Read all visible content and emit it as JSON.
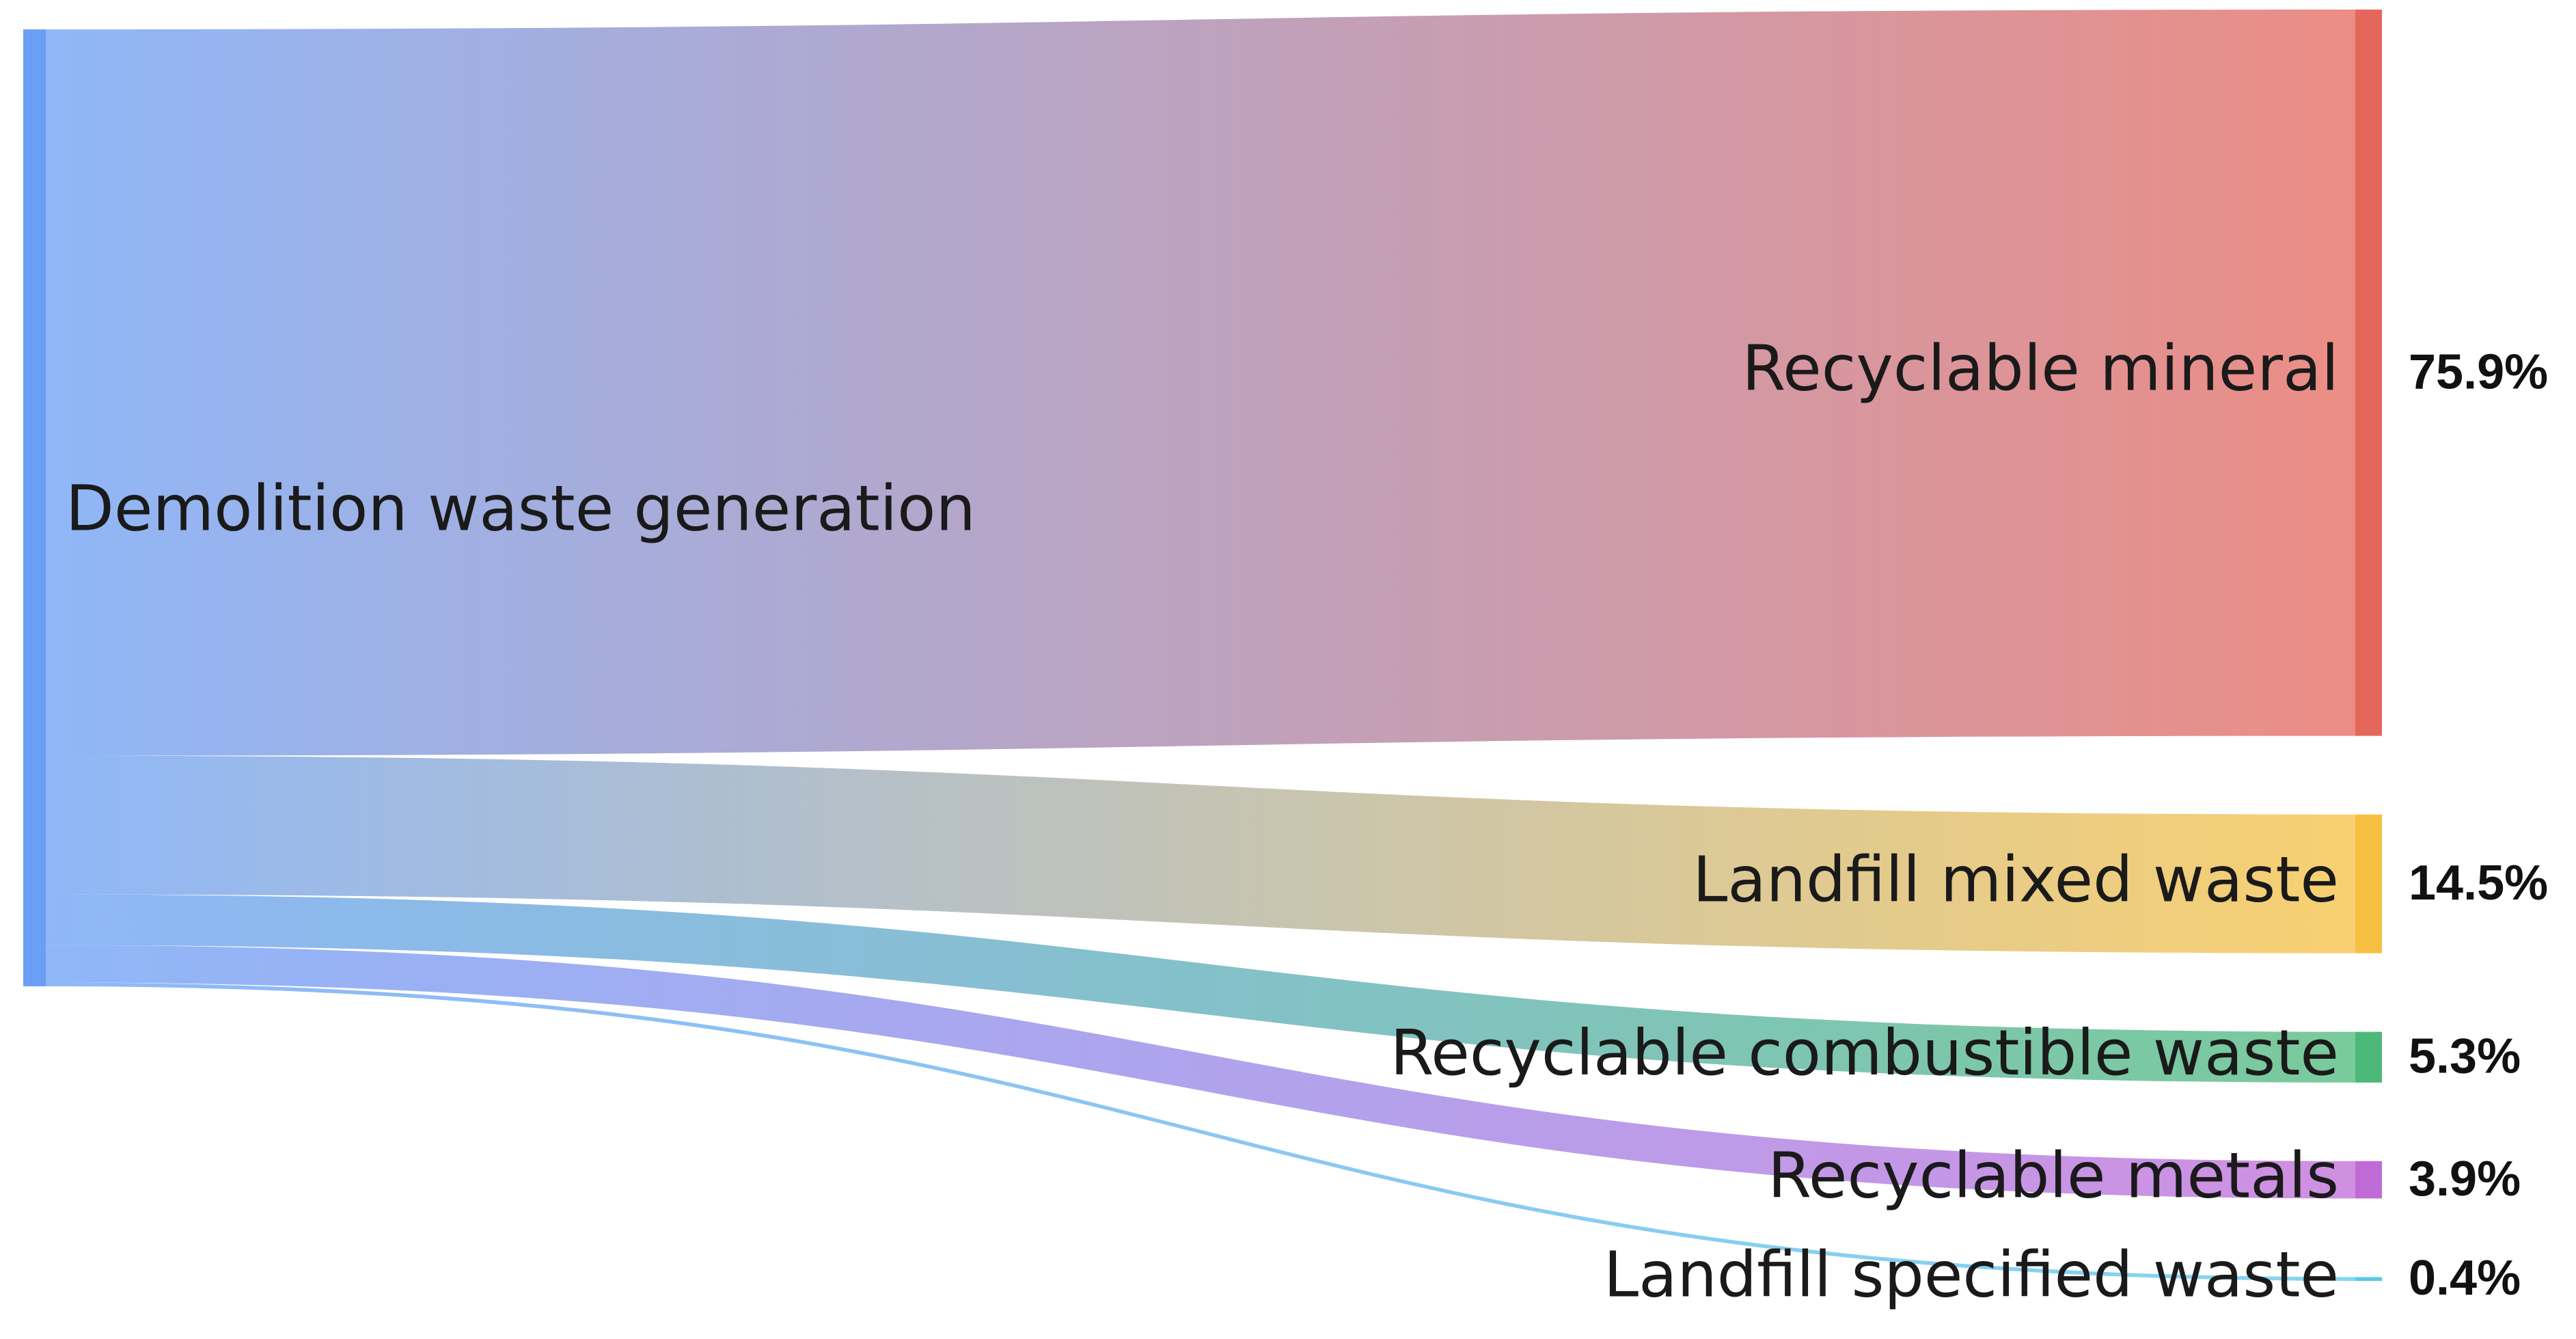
{
  "chart_data": {
    "type": "sankey",
    "source": "Demolition waste generation",
    "source_color": "#6a9ff5",
    "categories": [
      "Recyclable mineral",
      "Landfill mixed waste",
      "Recyclable combustible waste",
      "Recyclable metals",
      "Landfill specified waste"
    ],
    "values": [
      75.9,
      14.5,
      5.3,
      3.9,
      0.4
    ],
    "value_labels": [
      "75.9%",
      "14.5%",
      "5.3%",
      "3.9%",
      "0.4%"
    ],
    "colors": [
      "#e5675c",
      "#f6c042",
      "#4cb87a",
      "#c06ad8",
      "#5bc8e8"
    ]
  }
}
